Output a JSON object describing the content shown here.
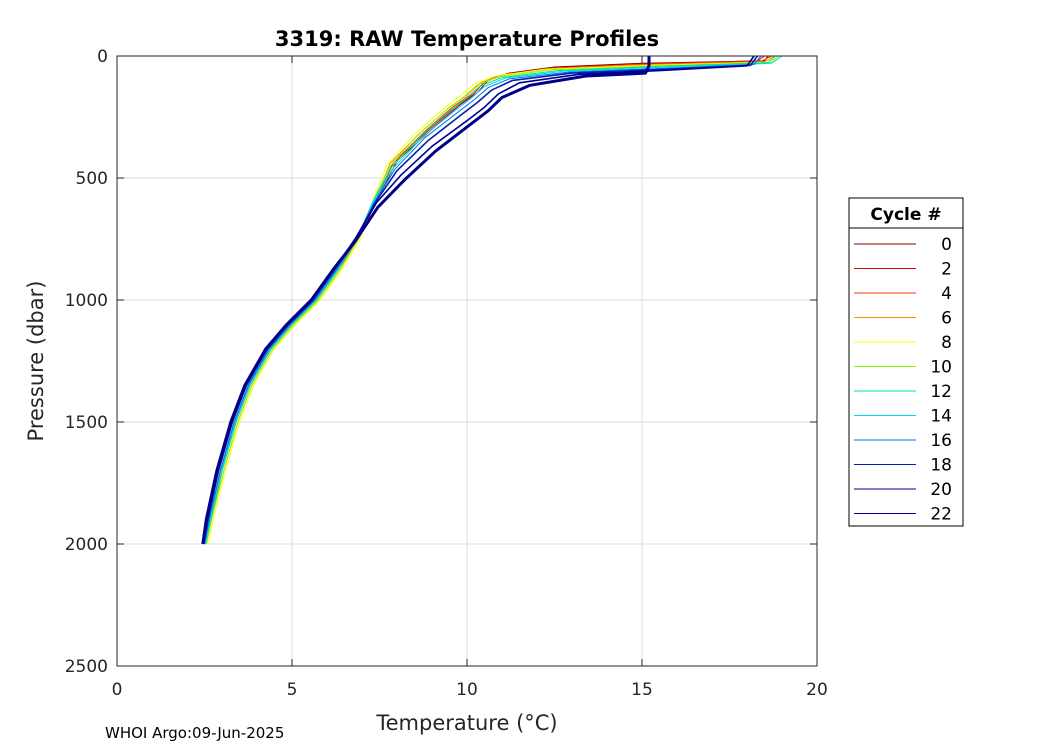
{
  "chart_data": {
    "type": "line",
    "title": "3319: RAW Temperature Profiles",
    "xlabel": "Temperature (°C)",
    "ylabel": "Pressure (dbar)",
    "xlim": [
      0,
      20
    ],
    "ylim": [
      0,
      2500
    ],
    "y_reversed": true,
    "x_ticks": [
      "0",
      "5",
      "10",
      "15",
      "20"
    ],
    "y_ticks": [
      "0",
      "500",
      "1000",
      "1500",
      "2000",
      "2500"
    ],
    "grid": true,
    "legend_title": "Cycle #",
    "legend_position": "right",
    "series": [
      {
        "name": "0",
        "color": "#800000",
        "values": [
          [
            18.6,
            0
          ],
          [
            18.5,
            20
          ],
          [
            15.0,
            30
          ],
          [
            12.5,
            45
          ],
          [
            11.2,
            70
          ],
          [
            10.6,
            100
          ],
          [
            10.3,
            150
          ],
          [
            9.8,
            200
          ],
          [
            9.0,
            300
          ],
          [
            8.0,
            430
          ],
          [
            7.4,
            600
          ],
          [
            6.8,
            750
          ],
          [
            6.2,
            880
          ],
          [
            5.6,
            1000
          ],
          [
            4.9,
            1100
          ],
          [
            4.3,
            1200
          ],
          [
            3.7,
            1350
          ],
          [
            3.3,
            1500
          ],
          [
            2.9,
            1700
          ],
          [
            2.6,
            1900
          ],
          [
            2.5,
            2000
          ]
        ]
      },
      {
        "name": "2",
        "color": "#e00000",
        "values": [
          [
            18.5,
            0
          ],
          [
            18.3,
            20
          ],
          [
            15.2,
            32
          ],
          [
            12.6,
            48
          ],
          [
            11.1,
            75
          ],
          [
            10.5,
            105
          ],
          [
            10.2,
            155
          ],
          [
            9.7,
            205
          ],
          [
            8.9,
            305
          ],
          [
            7.9,
            435
          ],
          [
            7.35,
            600
          ],
          [
            6.85,
            750
          ],
          [
            6.25,
            880
          ],
          [
            5.65,
            1000
          ],
          [
            4.95,
            1100
          ],
          [
            4.35,
            1200
          ],
          [
            3.75,
            1350
          ],
          [
            3.35,
            1500
          ],
          [
            2.95,
            1700
          ],
          [
            2.65,
            1900
          ],
          [
            2.5,
            2000
          ]
        ]
      },
      {
        "name": "4",
        "color": "#ff3000",
        "values": [
          [
            18.7,
            0
          ],
          [
            18.4,
            22
          ],
          [
            15.0,
            34
          ],
          [
            12.4,
            50
          ],
          [
            11.0,
            78
          ],
          [
            10.5,
            108
          ],
          [
            10.1,
            158
          ],
          [
            9.6,
            208
          ],
          [
            8.8,
            308
          ],
          [
            7.9,
            438
          ],
          [
            7.4,
            600
          ],
          [
            6.9,
            750
          ],
          [
            6.3,
            880
          ],
          [
            5.7,
            1000
          ],
          [
            5.0,
            1100
          ],
          [
            4.4,
            1200
          ],
          [
            3.8,
            1350
          ],
          [
            3.4,
            1500
          ],
          [
            3.0,
            1700
          ],
          [
            2.7,
            1900
          ],
          [
            2.55,
            2000
          ]
        ]
      },
      {
        "name": "6",
        "color": "#ff8c00",
        "values": [
          [
            18.8,
            0
          ],
          [
            18.5,
            24
          ],
          [
            15.1,
            36
          ],
          [
            12.3,
            52
          ],
          [
            10.9,
            80
          ],
          [
            10.4,
            110
          ],
          [
            10.0,
            160
          ],
          [
            9.5,
            210
          ],
          [
            8.7,
            310
          ],
          [
            7.8,
            440
          ],
          [
            7.35,
            600
          ],
          [
            6.9,
            750
          ],
          [
            6.35,
            880
          ],
          [
            5.75,
            1000
          ],
          [
            5.05,
            1100
          ],
          [
            4.45,
            1200
          ],
          [
            3.85,
            1350
          ],
          [
            3.45,
            1500
          ],
          [
            3.05,
            1700
          ],
          [
            2.7,
            1900
          ],
          [
            2.55,
            2000
          ]
        ]
      },
      {
        "name": "8",
        "color": "#ffff00",
        "values": [
          [
            18.9,
            0
          ],
          [
            18.6,
            25
          ],
          [
            15.3,
            38
          ],
          [
            12.2,
            55
          ],
          [
            10.8,
            82
          ],
          [
            10.2,
            115
          ],
          [
            9.8,
            165
          ],
          [
            9.3,
            220
          ],
          [
            8.5,
            320
          ],
          [
            7.7,
            450
          ],
          [
            7.3,
            600
          ],
          [
            6.95,
            750
          ],
          [
            6.4,
            880
          ],
          [
            5.8,
            1000
          ],
          [
            5.1,
            1100
          ],
          [
            4.5,
            1200
          ],
          [
            3.9,
            1350
          ],
          [
            3.5,
            1500
          ],
          [
            3.1,
            1700
          ],
          [
            2.75,
            1900
          ],
          [
            2.6,
            2000
          ]
        ]
      },
      {
        "name": "10",
        "color": "#80ff00",
        "values": [
          [
            18.9,
            0
          ],
          [
            18.7,
            26
          ],
          [
            15.5,
            40
          ],
          [
            12.4,
            57
          ],
          [
            10.9,
            85
          ],
          [
            10.3,
            118
          ],
          [
            9.9,
            168
          ],
          [
            9.4,
            222
          ],
          [
            8.6,
            322
          ],
          [
            7.8,
            452
          ],
          [
            7.3,
            600
          ],
          [
            6.9,
            750
          ],
          [
            6.35,
            880
          ],
          [
            5.75,
            1000
          ],
          [
            5.05,
            1100
          ],
          [
            4.45,
            1200
          ],
          [
            3.85,
            1350
          ],
          [
            3.45,
            1500
          ],
          [
            3.05,
            1700
          ],
          [
            2.7,
            1900
          ],
          [
            2.55,
            2000
          ]
        ]
      },
      {
        "name": "12",
        "color": "#00e090",
        "values": [
          [
            18.8,
            0
          ],
          [
            18.6,
            28
          ],
          [
            15.6,
            42
          ],
          [
            12.6,
            60
          ],
          [
            11.0,
            88
          ],
          [
            10.4,
            122
          ],
          [
            10.0,
            172
          ],
          [
            9.5,
            226
          ],
          [
            8.7,
            326
          ],
          [
            7.85,
            455
          ],
          [
            7.3,
            600
          ],
          [
            6.85,
            750
          ],
          [
            6.3,
            880
          ],
          [
            5.7,
            1000
          ],
          [
            5.0,
            1100
          ],
          [
            4.4,
            1200
          ],
          [
            3.8,
            1350
          ],
          [
            3.4,
            1500
          ],
          [
            3.0,
            1700
          ],
          [
            2.68,
            1900
          ],
          [
            2.53,
            2000
          ]
        ]
      },
      {
        "name": "14",
        "color": "#00d8ff",
        "values": [
          [
            19.0,
            0
          ],
          [
            18.7,
            30
          ],
          [
            15.8,
            45
          ],
          [
            12.8,
            62
          ],
          [
            11.1,
            90
          ],
          [
            10.5,
            125
          ],
          [
            10.1,
            175
          ],
          [
            9.6,
            230
          ],
          [
            8.75,
            330
          ],
          [
            7.9,
            458
          ],
          [
            7.32,
            600
          ],
          [
            6.85,
            750
          ],
          [
            6.28,
            880
          ],
          [
            5.68,
            1000
          ],
          [
            4.98,
            1100
          ],
          [
            4.38,
            1200
          ],
          [
            3.78,
            1350
          ],
          [
            3.38,
            1500
          ],
          [
            2.98,
            1700
          ],
          [
            2.66,
            1900
          ],
          [
            2.52,
            2000
          ]
        ]
      },
      {
        "name": "16",
        "color": "#0070e0",
        "values": [
          [
            18.4,
            0
          ],
          [
            18.2,
            35
          ],
          [
            15.7,
            50
          ],
          [
            12.9,
            66
          ],
          [
            11.2,
            94
          ],
          [
            10.6,
            130
          ],
          [
            10.2,
            180
          ],
          [
            9.7,
            235
          ],
          [
            8.8,
            335
          ],
          [
            7.95,
            462
          ],
          [
            7.35,
            600
          ],
          [
            6.85,
            750
          ],
          [
            6.25,
            880
          ],
          [
            5.65,
            1000
          ],
          [
            4.95,
            1100
          ],
          [
            4.35,
            1200
          ],
          [
            3.75,
            1350
          ],
          [
            3.35,
            1500
          ],
          [
            2.95,
            1700
          ],
          [
            2.63,
            1900
          ],
          [
            2.5,
            2000
          ]
        ]
      },
      {
        "name": "18",
        "color": "#0020b0",
        "values": [
          [
            18.3,
            0
          ],
          [
            18.1,
            38
          ],
          [
            15.6,
            55
          ],
          [
            13.0,
            70
          ],
          [
            11.3,
            100
          ],
          [
            10.7,
            140
          ],
          [
            10.3,
            190
          ],
          [
            9.8,
            245
          ],
          [
            8.9,
            345
          ],
          [
            8.0,
            470
          ],
          [
            7.38,
            600
          ],
          [
            6.82,
            750
          ],
          [
            6.2,
            880
          ],
          [
            5.6,
            1000
          ],
          [
            4.9,
            1100
          ],
          [
            4.3,
            1200
          ],
          [
            3.7,
            1350
          ],
          [
            3.3,
            1500
          ],
          [
            2.9,
            1700
          ],
          [
            2.6,
            1900
          ],
          [
            2.48,
            2000
          ]
        ]
      },
      {
        "name": "20",
        "color": "#000090",
        "values": [
          [
            18.2,
            0
          ],
          [
            18.0,
            40
          ],
          [
            15.5,
            60
          ],
          [
            13.2,
            75
          ],
          [
            11.5,
            110
          ],
          [
            10.9,
            155
          ],
          [
            10.5,
            210
          ],
          [
            10.0,
            265
          ],
          [
            9.0,
            370
          ],
          [
            8.1,
            490
          ],
          [
            7.42,
            600
          ],
          [
            6.8,
            750
          ],
          [
            6.18,
            880
          ],
          [
            5.58,
            1000
          ],
          [
            4.88,
            1100
          ],
          [
            4.28,
            1200
          ],
          [
            3.68,
            1350
          ],
          [
            3.28,
            1500
          ],
          [
            2.88,
            1700
          ],
          [
            2.58,
            1900
          ],
          [
            2.46,
            2000
          ]
        ]
      },
      {
        "name": "22",
        "color": "#00008b",
        "values": [
          [
            15.2,
            0
          ],
          [
            15.2,
            40
          ],
          [
            15.1,
            70
          ],
          [
            13.4,
            82
          ],
          [
            11.8,
            120
          ],
          [
            11.0,
            170
          ],
          [
            10.6,
            225
          ],
          [
            10.1,
            280
          ],
          [
            9.1,
            390
          ],
          [
            8.2,
            510
          ],
          [
            7.45,
            620
          ],
          [
            6.8,
            760
          ],
          [
            6.15,
            880
          ],
          [
            5.55,
            1000
          ],
          [
            4.85,
            1100
          ],
          [
            4.25,
            1200
          ],
          [
            3.65,
            1350
          ],
          [
            3.25,
            1500
          ],
          [
            2.85,
            1700
          ],
          [
            2.55,
            1900
          ],
          [
            2.45,
            2000
          ]
        ]
      }
    ]
  },
  "footer": {
    "text": "WHOI Argo:09-Jun-2025"
  }
}
